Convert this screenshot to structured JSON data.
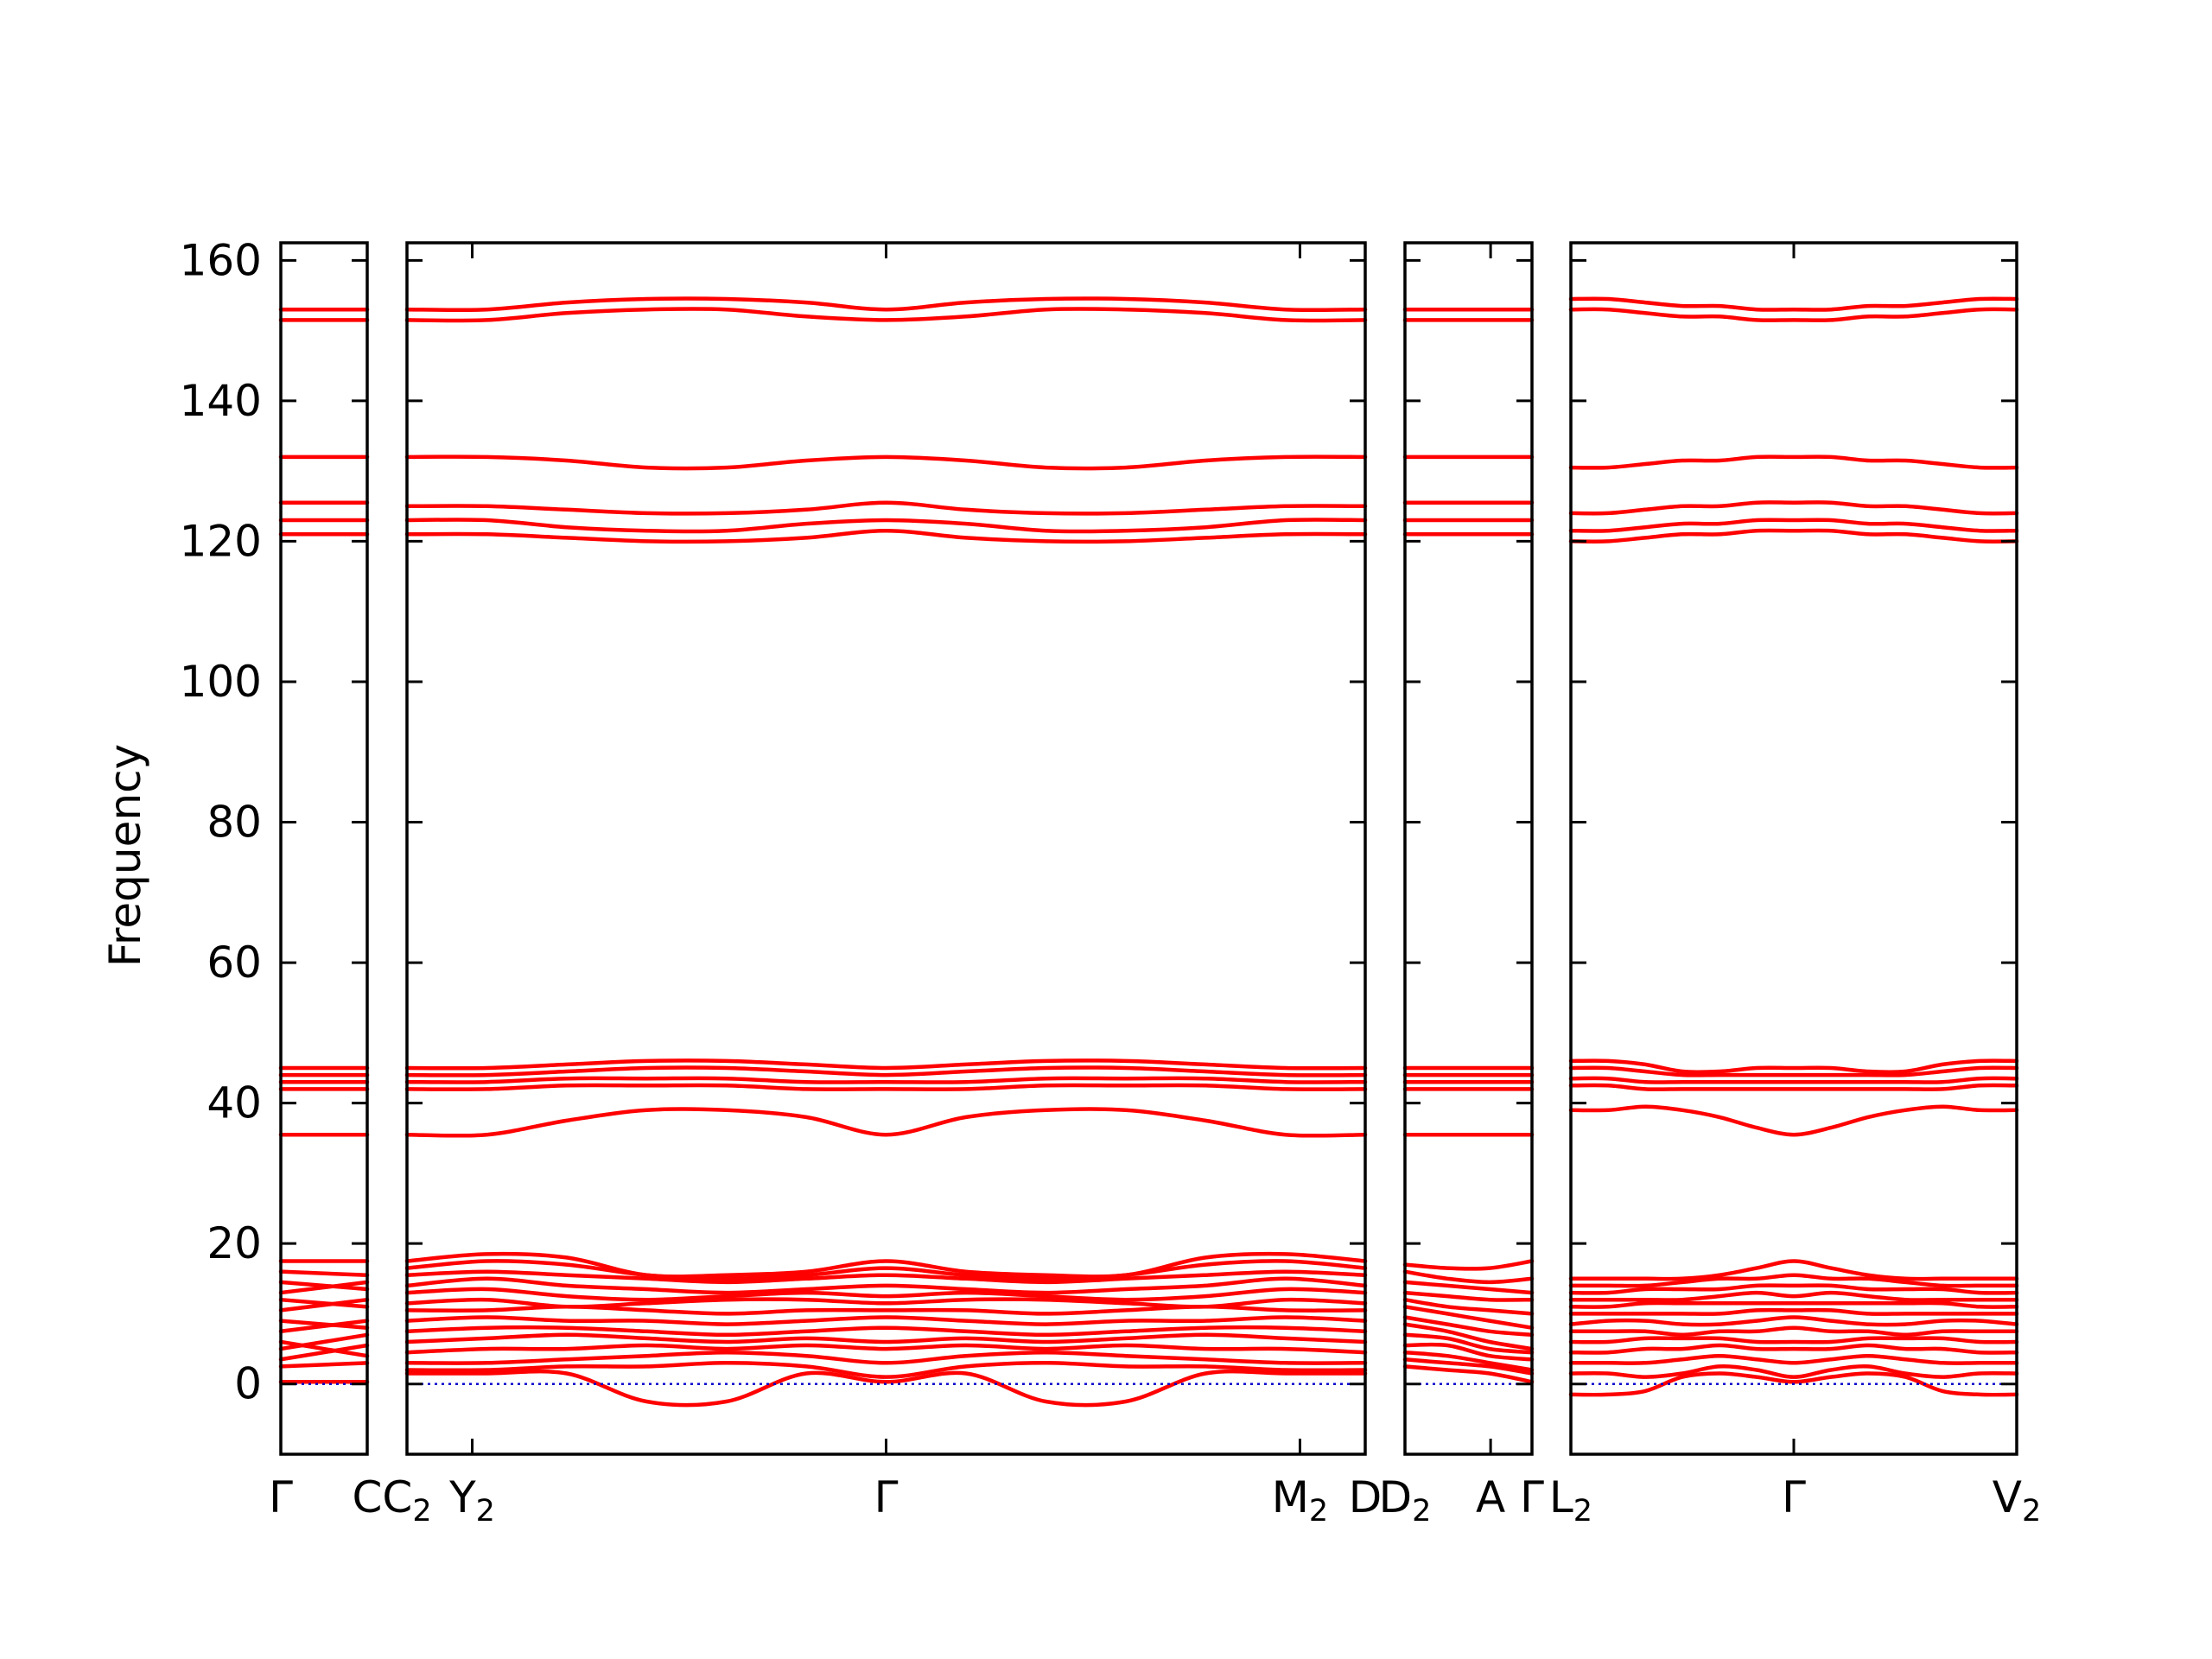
{
  "chart_data": {
    "type": "line",
    "title": "",
    "ylabel": "Frequency",
    "xlabel": "",
    "ylim": [
      -10,
      162.5
    ],
    "yticks": [
      0,
      20,
      40,
      60,
      80,
      100,
      120,
      140,
      160
    ],
    "band_color": "#ff0000",
    "zero_line_color": "#0000cc",
    "zero_line_value": 0,
    "panels": [
      {
        "id": "p1",
        "x_labels": [
          {
            "text": "Γ",
            "sub": "",
            "pos": 0
          },
          {
            "text": "C",
            "sub": "",
            "pos": 1
          }
        ],
        "bands": [
          [
            0.3,
            0.3
          ],
          [
            2.5,
            3.0
          ],
          [
            3.5,
            5.5
          ],
          [
            5.0,
            7.0
          ],
          [
            6.0,
            4.0
          ],
          [
            7.5,
            9.0
          ],
          [
            9.0,
            8.0
          ],
          [
            10.5,
            12.0
          ],
          [
            12.0,
            11.0
          ],
          [
            13.0,
            14.5
          ],
          [
            14.5,
            13.5
          ],
          [
            16.0,
            15.5
          ],
          [
            17.5,
            17.5
          ],
          [
            35.5,
            35.5
          ],
          [
            42.0,
            42.0
          ],
          [
            43.0,
            43.0
          ],
          [
            44.0,
            44.0
          ],
          [
            45.0,
            45.0
          ],
          [
            121.0,
            121.0
          ],
          [
            123.0,
            123.0
          ],
          [
            125.5,
            125.5
          ],
          [
            132.0,
            132.0
          ],
          [
            151.5,
            151.5
          ],
          [
            153.0,
            153.0
          ]
        ]
      },
      {
        "id": "p2",
        "x_labels": [
          {
            "text": "C",
            "sub": "2",
            "pos": 0
          },
          {
            "text": "Y",
            "sub": "2",
            "pos": 0.0681
          },
          {
            "text": "Γ",
            "sub": "",
            "pos": 0.5
          },
          {
            "text": "M",
            "sub": "2",
            "pos": 0.9319
          },
          {
            "text": "D",
            "sub": "",
            "pos": 1
          }
        ],
        "bands": [
          [
            1.5,
            1.5,
            1.5,
            -2.5,
            -2.5,
            1.5,
            0.3,
            1.5,
            -2.5,
            -2.5,
            1.5,
            1.5,
            1.5
          ],
          [
            2.0,
            2.0,
            2.5,
            2.5,
            3.0,
            2.5,
            1.0,
            2.5,
            3.0,
            2.5,
            2.5,
            2.0,
            2.0
          ],
          [
            3.0,
            3.0,
            3.5,
            4.0,
            4.5,
            4.0,
            3.0,
            4.0,
            4.5,
            4.0,
            3.5,
            3.0,
            3.0
          ],
          [
            4.5,
            5.0,
            5.0,
            5.5,
            5.0,
            5.5,
            5.0,
            5.5,
            5.0,
            5.5,
            5.0,
            5.0,
            4.5
          ],
          [
            6.0,
            6.5,
            7.0,
            6.5,
            6.0,
            6.5,
            6.0,
            6.5,
            6.0,
            6.5,
            7.0,
            6.5,
            6.0
          ],
          [
            7.5,
            8.0,
            8.0,
            7.5,
            7.0,
            7.5,
            8.0,
            7.5,
            7.0,
            7.5,
            8.0,
            8.0,
            7.5
          ],
          [
            9.0,
            9.5,
            9.0,
            9.0,
            8.5,
            9.0,
            9.5,
            9.0,
            8.5,
            9.0,
            9.0,
            9.5,
            9.0
          ],
          [
            10.5,
            10.5,
            11.0,
            10.5,
            10.0,
            10.5,
            10.5,
            10.5,
            10.0,
            10.5,
            11.0,
            10.5,
            10.5
          ],
          [
            11.5,
            12.0,
            11.0,
            11.5,
            12.0,
            12.0,
            11.5,
            12.0,
            12.0,
            11.5,
            11.0,
            12.0,
            11.5
          ],
          [
            13.0,
            13.5,
            12.5,
            12.0,
            12.5,
            13.0,
            12.5,
            13.0,
            12.5,
            12.0,
            12.5,
            13.5,
            13.0
          ],
          [
            14.0,
            15.0,
            14.0,
            13.5,
            13.0,
            13.5,
            14.0,
            13.5,
            13.0,
            13.5,
            14.0,
            15.0,
            14.0
          ],
          [
            15.5,
            16.0,
            15.5,
            15.0,
            14.5,
            15.0,
            15.5,
            15.0,
            14.5,
            15.0,
            15.5,
            16.0,
            15.5
          ],
          [
            16.5,
            17.5,
            17.0,
            15.5,
            15.0,
            15.5,
            16.5,
            15.5,
            15.0,
            15.5,
            17.0,
            17.5,
            16.5
          ],
          [
            17.5,
            18.5,
            18.0,
            15.5,
            15.5,
            16.0,
            17.5,
            16.0,
            15.5,
            15.5,
            18.0,
            18.5,
            17.5
          ],
          [
            35.5,
            35.5,
            37.5,
            39.0,
            39.0,
            38.0,
            35.5,
            38.0,
            39.0,
            39.0,
            37.5,
            35.5,
            35.5
          ],
          [
            42.0,
            42.0,
            42.5,
            42.5,
            42.5,
            42.0,
            42.0,
            42.0,
            42.5,
            42.5,
            42.5,
            42.0,
            42.0
          ],
          [
            43.0,
            43.0,
            43.5,
            43.5,
            43.5,
            43.0,
            43.0,
            43.0,
            43.5,
            43.5,
            43.5,
            43.0,
            43.0
          ],
          [
            44.0,
            44.0,
            44.5,
            45.0,
            45.0,
            44.5,
            44.0,
            44.5,
            45.0,
            45.0,
            44.5,
            44.0,
            44.0
          ],
          [
            45.0,
            45.0,
            45.5,
            46.0,
            46.0,
            45.5,
            45.0,
            45.5,
            46.0,
            46.0,
            45.5,
            45.0,
            45.0
          ],
          [
            121.0,
            121.0,
            120.5,
            120.0,
            120.0,
            120.5,
            121.5,
            120.5,
            120.0,
            120.0,
            120.5,
            121.0,
            121.0
          ],
          [
            123.0,
            123.0,
            122.0,
            121.5,
            121.5,
            122.5,
            123.0,
            122.5,
            121.5,
            121.5,
            122.0,
            123.0,
            123.0
          ],
          [
            125.0,
            125.0,
            124.5,
            124.0,
            124.0,
            124.5,
            125.5,
            124.5,
            124.0,
            124.0,
            124.5,
            125.0,
            125.0
          ],
          [
            132.0,
            132.0,
            131.5,
            130.5,
            130.5,
            131.5,
            132.0,
            131.5,
            130.5,
            130.5,
            131.5,
            132.0,
            132.0
          ],
          [
            151.5,
            151.5,
            152.5,
            153.0,
            153.0,
            152.0,
            151.5,
            152.0,
            153.0,
            153.0,
            152.5,
            151.5,
            151.5
          ],
          [
            153.0,
            153.0,
            154.0,
            154.5,
            154.5,
            154.0,
            153.0,
            154.0,
            154.5,
            154.5,
            154.0,
            153.0,
            153.0
          ]
        ]
      },
      {
        "id": "p3",
        "x_labels": [
          {
            "text": "D",
            "sub": "2",
            "pos": 0
          },
          {
            "text": "A",
            "sub": "",
            "pos": 0.6742
          },
          {
            "text": "Γ",
            "sub": "",
            "pos": 1
          }
        ],
        "bands": [
          [
            2.5,
            2.0,
            1.5,
            0.3
          ],
          [
            3.5,
            3.0,
            2.5,
            1.5
          ],
          [
            4.5,
            4.0,
            3.0,
            2.0
          ],
          [
            5.5,
            5.5,
            4.0,
            3.5
          ],
          [
            7.0,
            6.5,
            5.0,
            4.5
          ],
          [
            8.5,
            7.5,
            6.0,
            5.0
          ],
          [
            9.5,
            8.5,
            7.5,
            7.0
          ],
          [
            11.0,
            10.0,
            9.0,
            8.0
          ],
          [
            12.0,
            11.0,
            10.5,
            10.0
          ],
          [
            13.0,
            12.5,
            12.0,
            12.0
          ],
          [
            14.5,
            14.0,
            13.5,
            13.0
          ],
          [
            16.0,
            15.0,
            14.5,
            15.0
          ],
          [
            17.0,
            16.5,
            16.5,
            17.5
          ],
          [
            35.5,
            35.5,
            35.5,
            35.5
          ],
          [
            42.0,
            42.0,
            42.0,
            42.0
          ],
          [
            43.0,
            43.0,
            43.0,
            43.0
          ],
          [
            44.0,
            44.0,
            44.0,
            44.0
          ],
          [
            45.0,
            45.0,
            45.0,
            45.0
          ],
          [
            121.0,
            121.0,
            121.0,
            121.0
          ],
          [
            123.0,
            123.0,
            123.0,
            123.0
          ],
          [
            125.5,
            125.5,
            125.5,
            125.5
          ],
          [
            132.0,
            132.0,
            132.0,
            132.0
          ],
          [
            151.5,
            151.5,
            151.5,
            151.5
          ],
          [
            153.0,
            153.0,
            153.0,
            153.0
          ]
        ]
      },
      {
        "id": "p4",
        "x_labels": [
          {
            "text": "L",
            "sub": "2",
            "pos": 0
          },
          {
            "text": "Γ",
            "sub": "",
            "pos": 0.5
          },
          {
            "text": "V",
            "sub": "2",
            "pos": 1
          }
        ],
        "bands": [
          [
            -1.5,
            -1.5,
            -1.0,
            1.0,
            1.5,
            1.0,
            0.3,
            1.0,
            1.5,
            1.0,
            -1.0,
            -1.5,
            -1.5
          ],
          [
            1.5,
            1.5,
            1.0,
            1.5,
            2.5,
            2.0,
            1.0,
            2.0,
            2.5,
            1.5,
            1.0,
            1.5,
            1.5
          ],
          [
            3.0,
            3.0,
            3.0,
            3.5,
            4.0,
            3.5,
            3.0,
            3.5,
            4.0,
            3.5,
            3.0,
            3.0,
            3.0
          ],
          [
            4.5,
            4.5,
            5.0,
            5.0,
            5.5,
            5.0,
            5.0,
            5.0,
            5.5,
            5.0,
            5.0,
            4.5,
            4.5
          ],
          [
            6.0,
            6.0,
            6.5,
            6.5,
            6.5,
            6.0,
            6.0,
            6.0,
            6.5,
            6.5,
            6.5,
            6.0,
            6.0
          ],
          [
            7.5,
            7.5,
            7.5,
            7.0,
            7.5,
            7.5,
            8.0,
            7.5,
            7.5,
            7.0,
            7.5,
            7.5,
            7.5
          ],
          [
            8.5,
            9.0,
            9.0,
            8.5,
            8.5,
            9.0,
            9.5,
            9.0,
            8.5,
            8.5,
            9.0,
            9.0,
            8.5
          ],
          [
            10.0,
            10.0,
            10.0,
            10.0,
            10.0,
            10.5,
            10.5,
            10.5,
            10.0,
            10.0,
            10.0,
            10.0,
            10.0
          ],
          [
            11.0,
            11.0,
            11.5,
            11.5,
            11.5,
            11.5,
            11.5,
            11.5,
            11.5,
            11.5,
            11.5,
            11.0,
            11.0
          ],
          [
            12.0,
            12.0,
            12.0,
            12.0,
            12.5,
            13.0,
            12.5,
            13.0,
            12.5,
            12.0,
            12.0,
            12.0,
            12.0
          ],
          [
            13.0,
            13.0,
            13.5,
            13.5,
            13.5,
            14.0,
            14.0,
            14.0,
            13.5,
            13.5,
            13.5,
            13.0,
            13.0
          ],
          [
            14.0,
            14.0,
            14.0,
            14.5,
            15.0,
            15.0,
            15.5,
            15.0,
            15.0,
            14.5,
            14.0,
            14.0,
            14.0
          ],
          [
            15.0,
            15.0,
            15.0,
            15.0,
            15.5,
            16.5,
            17.5,
            16.5,
            15.5,
            15.0,
            15.0,
            15.0,
            15.0
          ],
          [
            39.0,
            39.0,
            39.5,
            39.0,
            38.0,
            36.5,
            35.5,
            36.5,
            38.0,
            39.0,
            39.5,
            39.0,
            39.0
          ],
          [
            42.5,
            42.5,
            42.0,
            42.0,
            42.0,
            42.0,
            42.0,
            42.0,
            42.0,
            42.0,
            42.0,
            42.5,
            42.5
          ],
          [
            43.5,
            43.5,
            43.0,
            43.0,
            43.0,
            43.0,
            43.0,
            43.0,
            43.0,
            43.0,
            43.0,
            43.5,
            43.5
          ],
          [
            45.0,
            45.0,
            44.5,
            44.0,
            44.0,
            44.0,
            44.0,
            44.0,
            44.0,
            44.0,
            44.5,
            45.0,
            45.0
          ],
          [
            46.0,
            46.0,
            45.5,
            44.5,
            44.5,
            45.0,
            45.0,
            45.0,
            44.5,
            44.5,
            45.5,
            46.0,
            46.0
          ],
          [
            120.0,
            120.0,
            120.5,
            121.0,
            121.0,
            121.5,
            121.5,
            121.5,
            121.0,
            121.0,
            120.5,
            120.0,
            120.0
          ],
          [
            121.5,
            121.5,
            122.0,
            122.5,
            122.5,
            123.0,
            123.0,
            123.0,
            122.5,
            122.5,
            122.0,
            121.5,
            121.5
          ],
          [
            124.0,
            124.0,
            124.5,
            125.0,
            125.0,
            125.5,
            125.5,
            125.5,
            125.0,
            125.0,
            124.5,
            124.0,
            124.0
          ],
          [
            130.5,
            130.5,
            131.0,
            131.5,
            131.5,
            132.0,
            132.0,
            132.0,
            131.5,
            131.5,
            131.0,
            130.5,
            130.5
          ],
          [
            153.0,
            153.0,
            152.5,
            152.0,
            152.0,
            151.5,
            151.5,
            151.5,
            152.0,
            152.0,
            152.5,
            153.0,
            153.0
          ],
          [
            154.5,
            154.5,
            154.0,
            153.5,
            153.5,
            153.0,
            153.0,
            153.0,
            153.5,
            153.5,
            154.0,
            154.5,
            154.5
          ]
        ]
      }
    ]
  }
}
